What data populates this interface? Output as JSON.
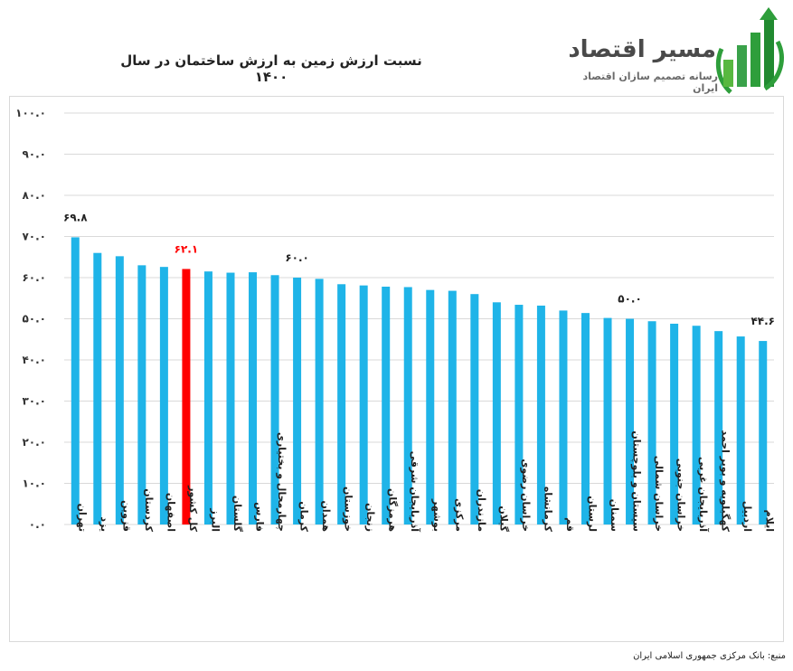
{
  "logo": {
    "title": "مسیر اقتصاد",
    "subtitle": "رسانه تصمیم سازان اقتصاد ایران"
  },
  "source_note": "منبع: بانک مرکزی جمهوری اسلامی ایران",
  "colors": {
    "bar": "#1fb4e8",
    "highlight": "#ff0000",
    "grid": "#d9d9d9",
    "logo_green": "#2e9e3b"
  },
  "chart_data": {
    "type": "bar",
    "title": "نسبت ارزش زمین به ارزش ساختمان در سال ۱۴۰۰",
    "xlabel": "",
    "ylabel": "",
    "ylim": [
      0,
      100
    ],
    "yticks": [
      0,
      10,
      20,
      30,
      40,
      50,
      60,
      70,
      80,
      90,
      100
    ],
    "ytick_labels": [
      "۰.۰",
      "۱۰.۰",
      "۲۰.۰",
      "۳۰.۰",
      "۴۰.۰",
      "۵۰.۰",
      "۶۰.۰",
      "۷۰.۰",
      "۸۰.۰",
      "۹۰.۰",
      "۱۰۰.۰"
    ],
    "categories": [
      "تهران",
      "یزد",
      "قزوین",
      "کردستان",
      "اصفهان",
      "کل کشور",
      "البرز",
      "گلستان",
      "فارس",
      "چهارمحال و بختیاری",
      "کرمان",
      "همدان",
      "خوزستان",
      "زنجان",
      "هرمزگان",
      "آذربایجان شرقی",
      "بوشهر",
      "مرکزی",
      "مازندران",
      "گیلان",
      "خراسان رضوی",
      "کرمانشاه",
      "قم",
      "لرستان",
      "سمنان",
      "سیستان و بلوچستان",
      "خراسان شمالی",
      "خراسان جنوبی",
      "آذربایجان غربی",
      "کهگیلویه و بویر احمد",
      "اردبیل",
      "ایلام"
    ],
    "values": [
      69.8,
      66.0,
      65.2,
      63.0,
      62.6,
      62.1,
      61.5,
      61.2,
      61.3,
      60.6,
      60.0,
      59.7,
      58.4,
      58.1,
      57.8,
      57.7,
      57.0,
      56.8,
      56.0,
      54.0,
      53.4,
      53.2,
      52.0,
      51.4,
      50.2,
      50.0,
      49.4,
      48.8,
      48.3,
      47.0,
      45.7,
      44.6
    ],
    "highlight_category": "کل کشور",
    "data_labels": [
      {
        "category": "تهران",
        "text": "۶۹.۸"
      },
      {
        "category": "کل کشور",
        "text": "۶۲.۱"
      },
      {
        "category": "کرمان",
        "text": "۶۰.۰"
      },
      {
        "category": "سیستان و بلوچستان",
        "text": "۵۰.۰"
      },
      {
        "category": "ایلام",
        "text": "۴۴.۶"
      }
    ]
  }
}
